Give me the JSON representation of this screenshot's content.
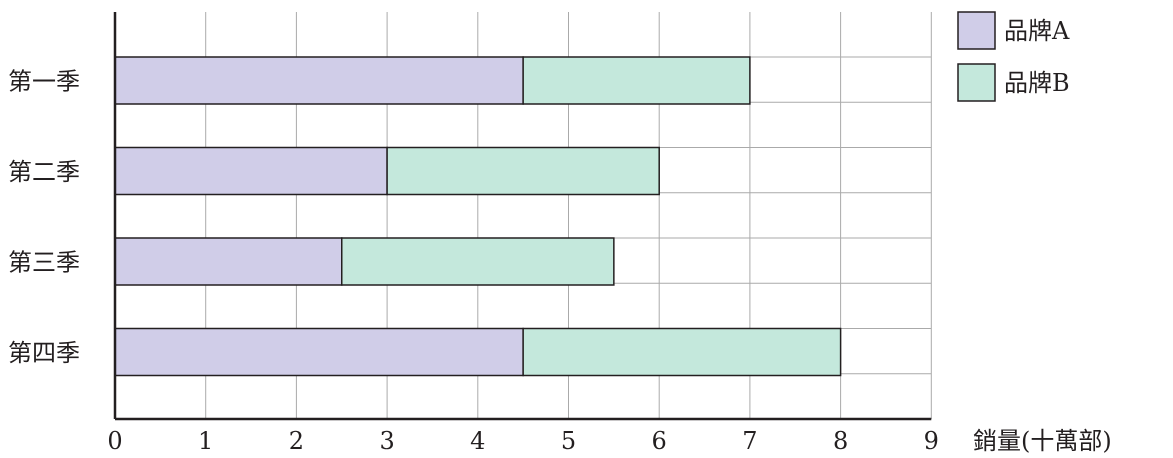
{
  "chart_data": {
    "type": "bar",
    "orientation": "horizontal",
    "stacked": true,
    "categories": [
      "第一季",
      "第二季",
      "第三季",
      "第四季"
    ],
    "series": [
      {
        "name": "品牌A",
        "values": [
          4.5,
          3,
          2.5,
          4.5
        ],
        "color": "#d0cde8"
      },
      {
        "name": "品牌B",
        "values": [
          2.5,
          3,
          3,
          3.5
        ],
        "color": "#c4e8dc"
      }
    ],
    "xlabel": "銷量(十萬部)",
    "ylabel": "",
    "xlim": [
      0,
      9
    ],
    "xticks": [
      "0",
      "1",
      "2",
      "3",
      "4",
      "5",
      "6",
      "7",
      "8",
      "9"
    ],
    "grid": true,
    "legend": "top-right"
  },
  "colors": {
    "grid": "#aaaaaa",
    "axis": "#231f20",
    "bar_stroke": "#231f20"
  }
}
